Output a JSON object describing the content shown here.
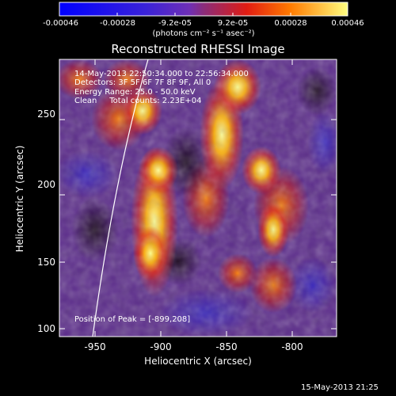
{
  "colorbar": {
    "tick_labels": [
      "-0.00046",
      "-0.00028",
      "-9.2e-05",
      "9.2e-05",
      "0.00028",
      "0.00046"
    ],
    "units": "(photons cm⁻² s⁻¹ asec⁻²)"
  },
  "plot": {
    "title": "Reconstructed RHESSI Image",
    "xlabel": "Heliocentric X (arcsec)",
    "ylabel": "Heliocentric Y (arcsec)",
    "x_ticks": [
      "-950",
      "-900",
      "-850",
      "-800"
    ],
    "y_ticks": [
      "100",
      "150",
      "200",
      "250"
    ],
    "annotations": [
      "14-May-2013 22:50:34.000 to 22:56:34.000",
      "Detectors: 3F 5F 6F 7F 8F 9F, All 0",
      "Energy Range: 25.0 - 50.0 keV",
      "Clean     Total counts: 2.23E+04"
    ],
    "peak_text": "Position of Peak = [-899,208]"
  },
  "footer": {
    "timestamp": "15-May-2013 21:25"
  }
}
